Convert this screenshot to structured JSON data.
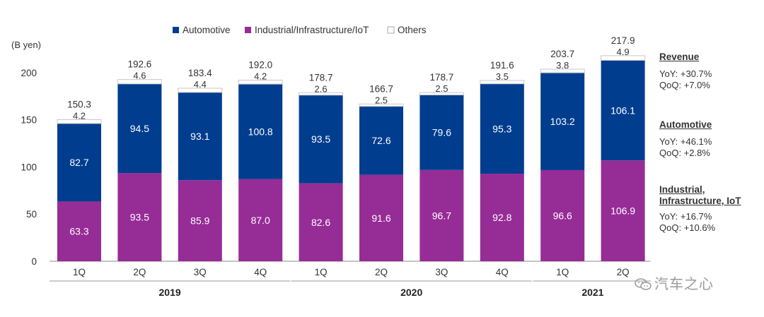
{
  "chart_data": {
    "type": "bar",
    "stacked": true,
    "unit_label": "(B yen)",
    "ylim": [
      0,
      200
    ],
    "yticks": [
      0,
      50,
      100,
      150,
      200
    ],
    "categories": [
      "1Q",
      "2Q",
      "3Q",
      "4Q",
      "1Q",
      "2Q",
      "3Q",
      "4Q",
      "1Q",
      "2Q"
    ],
    "years": [
      {
        "label": "2019",
        "from": 0,
        "to": 3
      },
      {
        "label": "2020",
        "from": 4,
        "to": 7
      },
      {
        "label": "2021",
        "from": 8,
        "to": 9
      }
    ],
    "series": [
      {
        "name": "Industrial/Infrastructure/IoT",
        "color": "#962c96",
        "values": [
          63.3,
          93.5,
          85.9,
          87.0,
          82.6,
          91.6,
          96.7,
          92.8,
          96.6,
          106.9
        ],
        "labels": [
          "63.3",
          "93.5",
          "85.9",
          "87.0",
          "82.6",
          "91.6",
          "96.7",
          "92.8",
          "96.6",
          "106.9"
        ]
      },
      {
        "name": "Automotive",
        "color": "#003d8f",
        "values": [
          82.7,
          94.5,
          93.1,
          100.8,
          93.5,
          72.6,
          79.6,
          95.3,
          103.2,
          106.1
        ],
        "labels": [
          "82.7",
          "94.5",
          "93.1",
          "100.8",
          "93.5",
          "72.6",
          "79.6",
          "95.3",
          "103.2",
          "106.1"
        ]
      },
      {
        "name": "Others",
        "color": "#ffffff",
        "values": [
          4.2,
          4.6,
          4.4,
          4.2,
          2.6,
          2.5,
          2.5,
          3.5,
          3.8,
          4.9
        ],
        "labels": [
          "4.2",
          "4.6",
          "4.4",
          "4.2",
          "2.6",
          "2.5",
          "2.5",
          "3.5",
          "3.8",
          "4.9"
        ]
      }
    ],
    "totals": [
      150.3,
      192.6,
      183.4,
      192.0,
      178.7,
      166.7,
      178.7,
      191.6,
      203.7,
      217.9
    ],
    "total_labels": [
      "150.3",
      "192.6",
      "183.4",
      "192.0",
      "178.7",
      "166.7",
      "178.7",
      "191.6",
      "203.7",
      "217.9"
    ],
    "legend": [
      "Automotive",
      "Industrial/Infrastructure/IoT",
      "Others"
    ],
    "legend_position": "top"
  },
  "summary": {
    "revenue": {
      "title": "Revenue",
      "yoy": "YoY: +30.7%",
      "qoq": "QoQ: +7.0%"
    },
    "automotive": {
      "title": "Automotive",
      "yoy": "YoY: +46.1%",
      "qoq": "QoQ: +2.8%"
    },
    "industrial": {
      "title_line1": "Industrial,",
      "title_line2": "Infrastructure, IoT",
      "yoy": "YoY: +16.7%",
      "qoq": "QoQ: +10.6%"
    }
  },
  "watermark": {
    "text": "汽车之心",
    "icon": "wechat-icon"
  }
}
